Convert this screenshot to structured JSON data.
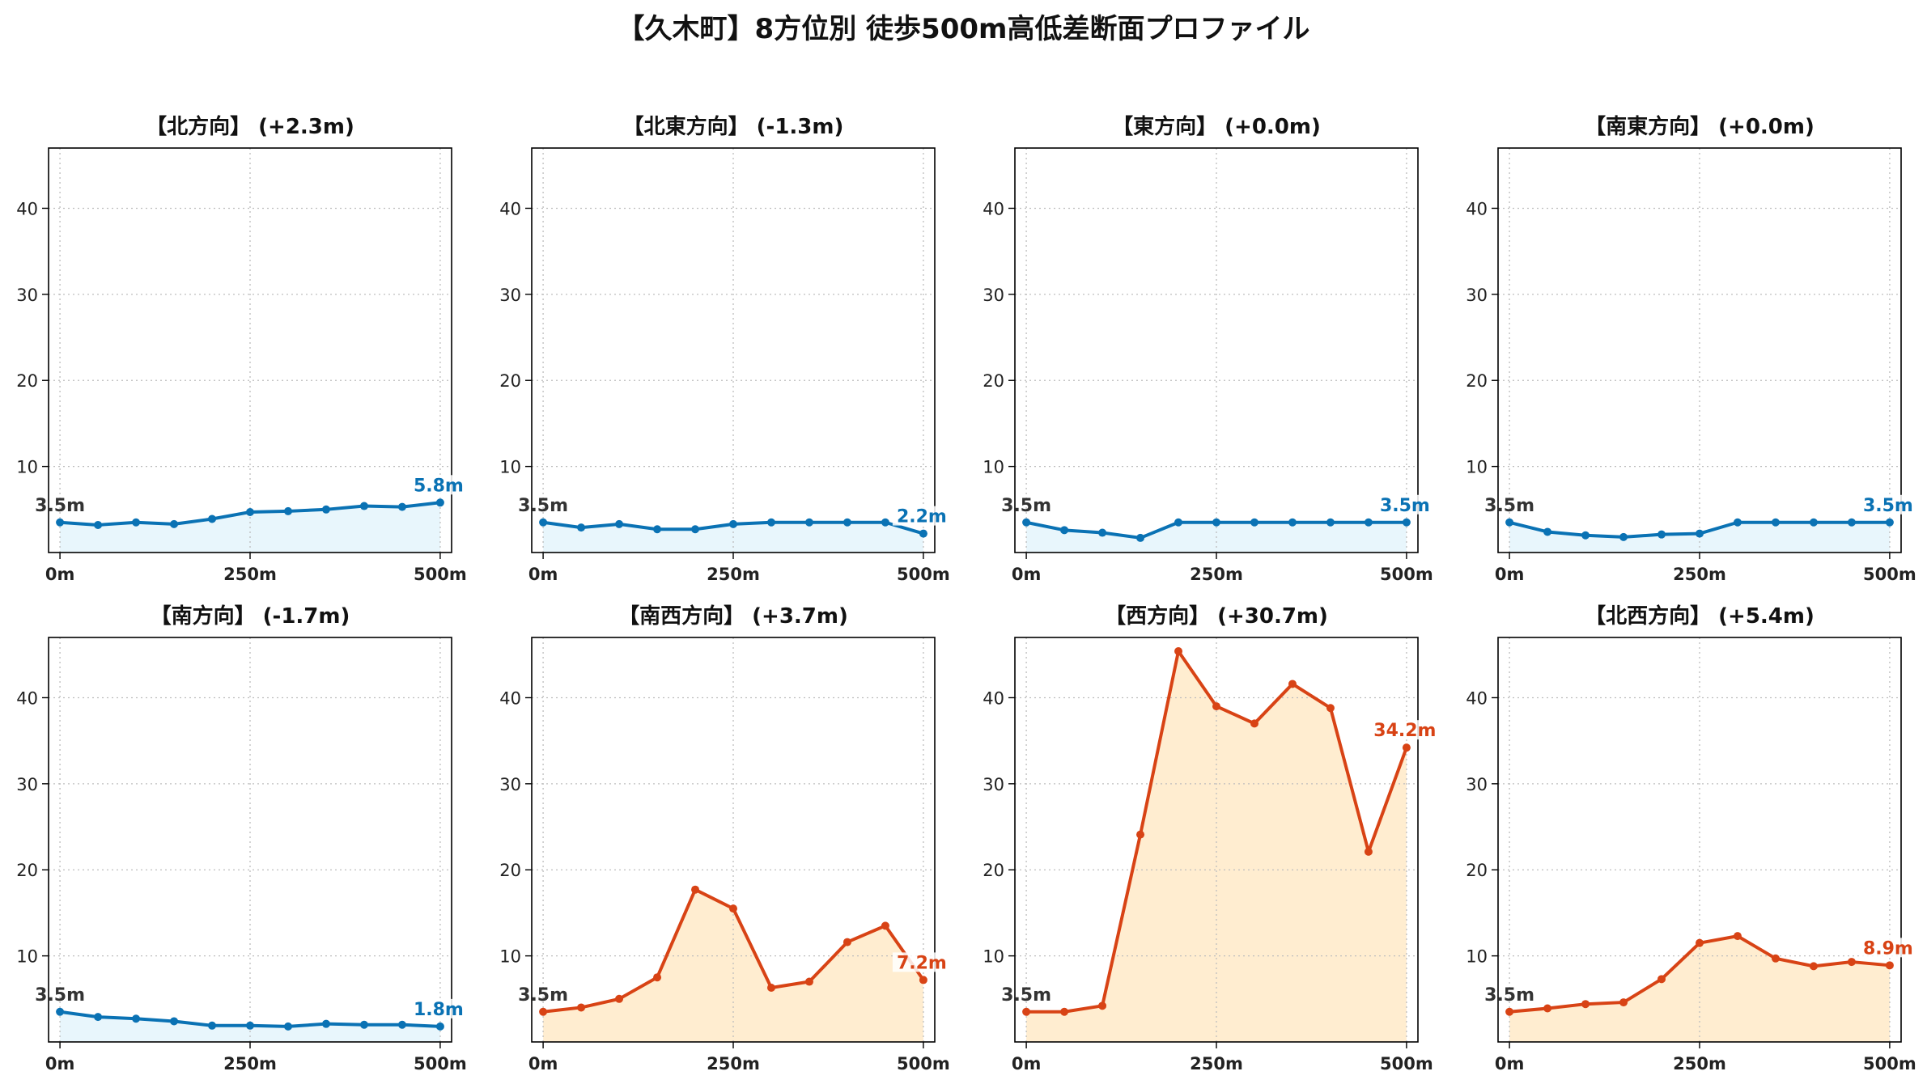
{
  "suptitle": "【久木町】8方位別 徒歩500m高低差断面プロファイル",
  "colors": {
    "down_line": "#0a72b4",
    "down_fill": "#e8f6fc",
    "up_line": "#d84315",
    "up_fill": "#ffedd0",
    "start_label": "#333333",
    "grid": "#bdbdbd"
  },
  "chart_data": [
    {
      "type": "area",
      "title": "【北方向】 (+2.3m)",
      "x": [
        0,
        50,
        100,
        150,
        200,
        250,
        300,
        350,
        400,
        450,
        500
      ],
      "values": [
        3.5,
        3.2,
        3.5,
        3.3,
        3.9,
        4.7,
        4.8,
        5.0,
        5.4,
        5.3,
        5.8
      ],
      "start_label": "3.5m",
      "end_label": "5.8m",
      "trend": "down",
      "xticks": [
        0,
        250,
        500
      ],
      "xtick_labels": [
        "0m",
        "250m",
        "500m"
      ],
      "yticks": [
        10,
        20,
        30,
        40
      ],
      "ylim": [
        0,
        47
      ],
      "xlim": [
        -15,
        515
      ],
      "grid": true
    },
    {
      "type": "area",
      "title": "【北東方向】 (-1.3m)",
      "x": [
        0,
        50,
        100,
        150,
        200,
        250,
        300,
        350,
        400,
        450,
        500
      ],
      "values": [
        3.5,
        2.9,
        3.3,
        2.7,
        2.7,
        3.3,
        3.5,
        3.5,
        3.5,
        3.5,
        2.2
      ],
      "start_label": "3.5m",
      "end_label": "2.2m",
      "trend": "down",
      "xticks": [
        0,
        250,
        500
      ],
      "xtick_labels": [
        "0m",
        "250m",
        "500m"
      ],
      "yticks": [
        10,
        20,
        30,
        40
      ],
      "ylim": [
        0,
        47
      ],
      "xlim": [
        -15,
        515
      ],
      "grid": true
    },
    {
      "type": "area",
      "title": "【東方向】 (+0.0m)",
      "x": [
        0,
        50,
        100,
        150,
        200,
        250,
        300,
        350,
        400,
        450,
        500
      ],
      "values": [
        3.5,
        2.6,
        2.3,
        1.7,
        3.5,
        3.5,
        3.5,
        3.5,
        3.5,
        3.5,
        3.5
      ],
      "start_label": "3.5m",
      "end_label": "3.5m",
      "trend": "down",
      "xticks": [
        0,
        250,
        500
      ],
      "xtick_labels": [
        "0m",
        "250m",
        "500m"
      ],
      "yticks": [
        10,
        20,
        30,
        40
      ],
      "ylim": [
        0,
        47
      ],
      "xlim": [
        -15,
        515
      ],
      "grid": true
    },
    {
      "type": "area",
      "title": "【南東方向】 (+0.0m)",
      "x": [
        0,
        50,
        100,
        150,
        200,
        250,
        300,
        350,
        400,
        450,
        500
      ],
      "values": [
        3.5,
        2.4,
        2.0,
        1.8,
        2.1,
        2.2,
        3.5,
        3.5,
        3.5,
        3.5,
        3.5
      ],
      "start_label": "3.5m",
      "end_label": "3.5m",
      "trend": "down",
      "xticks": [
        0,
        250,
        500
      ],
      "xtick_labels": [
        "0m",
        "250m",
        "500m"
      ],
      "yticks": [
        10,
        20,
        30,
        40
      ],
      "ylim": [
        0,
        47
      ],
      "xlim": [
        -15,
        515
      ],
      "grid": true
    },
    {
      "type": "area",
      "title": "【南方向】 (-1.7m)",
      "x": [
        0,
        50,
        100,
        150,
        200,
        250,
        300,
        350,
        400,
        450,
        500
      ],
      "values": [
        3.5,
        2.9,
        2.7,
        2.4,
        1.9,
        1.9,
        1.8,
        2.1,
        2.0,
        2.0,
        1.8
      ],
      "start_label": "3.5m",
      "end_label": "1.8m",
      "trend": "down",
      "xticks": [
        0,
        250,
        500
      ],
      "xtick_labels": [
        "0m",
        "250m",
        "500m"
      ],
      "yticks": [
        10,
        20,
        30,
        40
      ],
      "ylim": [
        0,
        47
      ],
      "xlim": [
        -15,
        515
      ],
      "grid": true
    },
    {
      "type": "area",
      "title": "【南西方向】 (+3.7m)",
      "x": [
        0,
        50,
        100,
        150,
        200,
        250,
        300,
        350,
        400,
        450,
        500
      ],
      "values": [
        3.5,
        4.0,
        5.0,
        7.5,
        17.7,
        15.5,
        6.3,
        7.0,
        11.6,
        13.5,
        7.2
      ],
      "start_label": "3.5m",
      "end_label": "7.2m",
      "trend": "up",
      "xticks": [
        0,
        250,
        500
      ],
      "xtick_labels": [
        "0m",
        "250m",
        "500m"
      ],
      "yticks": [
        10,
        20,
        30,
        40
      ],
      "ylim": [
        0,
        47
      ],
      "xlim": [
        -15,
        515
      ],
      "grid": true
    },
    {
      "type": "area",
      "title": "【西方向】 (+30.7m)",
      "x": [
        0,
        50,
        100,
        150,
        200,
        250,
        300,
        350,
        400,
        450,
        500
      ],
      "values": [
        3.5,
        3.5,
        4.2,
        24.1,
        45.4,
        39.0,
        37.0,
        41.6,
        38.8,
        22.1,
        34.2
      ],
      "start_label": "3.5m",
      "end_label": "34.2m",
      "trend": "up",
      "xticks": [
        0,
        250,
        500
      ],
      "xtick_labels": [
        "0m",
        "250m",
        "500m"
      ],
      "yticks": [
        10,
        20,
        30,
        40
      ],
      "ylim": [
        0,
        47
      ],
      "xlim": [
        -15,
        515
      ],
      "grid": true
    },
    {
      "type": "area",
      "title": "【北西方向】 (+5.4m)",
      "x": [
        0,
        50,
        100,
        150,
        200,
        250,
        300,
        350,
        400,
        450,
        500
      ],
      "values": [
        3.5,
        3.9,
        4.4,
        4.6,
        7.3,
        11.5,
        12.3,
        9.7,
        8.8,
        9.3,
        8.9
      ],
      "start_label": "3.5m",
      "end_label": "8.9m",
      "trend": "up",
      "xticks": [
        0,
        250,
        500
      ],
      "xtick_labels": [
        "0m",
        "250m",
        "500m"
      ],
      "yticks": [
        10,
        20,
        30,
        40
      ],
      "ylim": [
        0,
        47
      ],
      "xlim": [
        -15,
        515
      ],
      "grid": true
    }
  ]
}
